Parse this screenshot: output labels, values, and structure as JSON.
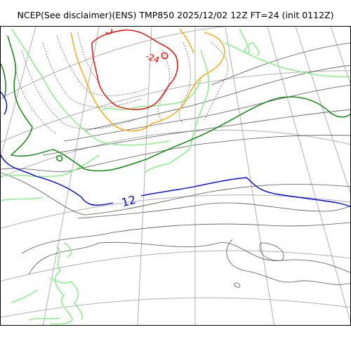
{
  "title": "NCEP(See disclaimer)(ENS) TMP850 2025/12/02 12Z FT=24 (init 0112Z)",
  "map": {
    "contour_labels": [
      {
        "text": "12",
        "color": "#0000ee"
      },
      {
        "text": "-24",
        "color": "#ee0000"
      }
    ],
    "line_colors": {
      "graticule": "#b0b0b0",
      "isotherm_thin": "#555555",
      "isotherm_dotted": "#555555",
      "isotherm_green_light": "#90ee90",
      "isotherm_green_dark": "#008000",
      "isotherm_orange": "#ffa500",
      "isotherm_red": "#ee0000",
      "isotherm_blue": "#0000ee"
    }
  }
}
